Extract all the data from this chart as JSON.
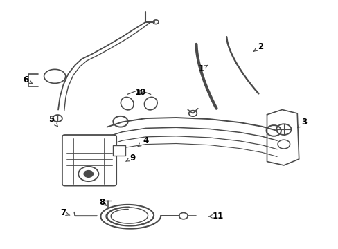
{
  "bg_color": "#ffffff",
  "line_color": "#4a4a4a",
  "label_color": "#000000",
  "fig_width": 4.89,
  "fig_height": 3.6,
  "labels": {
    "1": [
      0.595,
      0.275,
      0.62,
      0.255
    ],
    "2": [
      0.77,
      0.185,
      0.745,
      0.21
    ],
    "3": [
      0.9,
      0.49,
      0.875,
      0.52
    ],
    "4": [
      0.43,
      0.565,
      0.4,
      0.595
    ],
    "5": [
      0.15,
      0.48,
      0.17,
      0.51
    ],
    "6": [
      0.075,
      0.32,
      0.095,
      0.335
    ],
    "7": [
      0.185,
      0.858,
      0.21,
      0.87
    ],
    "8": [
      0.3,
      0.815,
      0.315,
      0.83
    ],
    "9": [
      0.39,
      0.635,
      0.37,
      0.65
    ],
    "10": [
      0.415,
      0.37,
      0.41,
      0.39
    ],
    "11": [
      0.645,
      0.872,
      0.61,
      0.872
    ]
  }
}
